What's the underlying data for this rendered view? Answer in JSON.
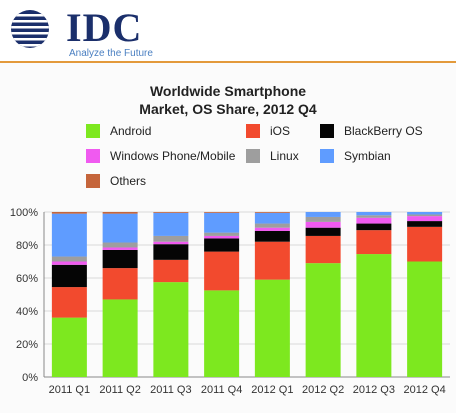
{
  "header": {
    "logo_text": "IDC",
    "tagline": "Analyze the Future"
  },
  "colors": {
    "android": "#7de81f",
    "ios": "#f24a2e",
    "blackberry": "#050505",
    "windows": "#f05af0",
    "linux": "#9e9e9e",
    "symbian": "#5f9cff",
    "others": "#c5653b",
    "brand": "#1b2f6b",
    "accent_band": "#e39a3b"
  },
  "chart_data": {
    "type": "bar",
    "stacked": true,
    "title_line1": "Worldwide Smartphone",
    "title_line2": "Market, OS Share, 2012 Q4",
    "categories": [
      "2011 Q1",
      "2011 Q2",
      "2011 Q3",
      "2011 Q4",
      "2012 Q1",
      "2012 Q2",
      "2012 Q3",
      "2012 Q4"
    ],
    "ylim": [
      0,
      100
    ],
    "yticks": [
      "0%",
      "20%",
      "40%",
      "60%",
      "80%",
      "100%"
    ],
    "grid": true,
    "legend_position": "top",
    "series": [
      {
        "name": "Android",
        "key": "android",
        "values": [
          36.0,
          47.0,
          57.5,
          52.5,
          59.0,
          69.0,
          74.5,
          70.0
        ]
      },
      {
        "name": "iOS",
        "key": "ios",
        "values": [
          18.5,
          19.0,
          13.5,
          23.5,
          23.0,
          16.5,
          14.5,
          21.0
        ]
      },
      {
        "name": "BlackBerry OS",
        "key": "blackberry",
        "values": [
          13.5,
          11.0,
          9.5,
          8.0,
          6.5,
          5.0,
          4.0,
          3.5
        ]
      },
      {
        "name": "Windows Phone/Mobile",
        "key": "windows",
        "values": [
          2.0,
          1.5,
          1.5,
          1.5,
          2.0,
          3.5,
          3.5,
          3.0
        ]
      },
      {
        "name": "Linux",
        "key": "linux",
        "values": [
          3.0,
          3.0,
          3.5,
          2.0,
          2.5,
          3.0,
          1.5,
          1.0
        ]
      },
      {
        "name": "Symbian",
        "key": "symbian",
        "values": [
          26.0,
          17.5,
          14.0,
          12.0,
          6.5,
          3.0,
          2.0,
          1.5
        ]
      },
      {
        "name": "Others",
        "key": "others",
        "values": [
          1.0,
          1.0,
          0.5,
          0.5,
          0.5,
          0.0,
          0.0,
          0.0
        ]
      }
    ]
  }
}
